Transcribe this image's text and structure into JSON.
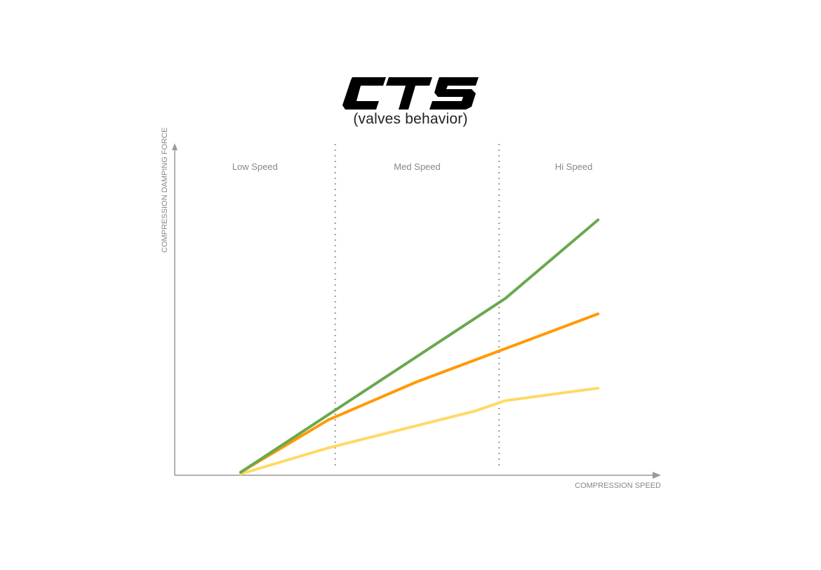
{
  "logo_text": "CTS",
  "subtitle": "(valves behavior)",
  "chart_data": {
    "type": "line",
    "title": "CTS",
    "subtitle": "(valves behavior)",
    "xlabel": "COMPRESSION SPEED",
    "ylabel": "COMPRESSION DAMPING FORCE",
    "xlim": [
      0,
      100
    ],
    "ylim": [
      0,
      100
    ],
    "grid": false,
    "ticks": "none",
    "zones": [
      {
        "label": "Low Speed",
        "from": 0,
        "to": 33.1
      },
      {
        "label": "Med Speed",
        "from": 33.1,
        "to": 66.9
      },
      {
        "label": "Hi Speed",
        "from": 66.9,
        "to": 100
      }
    ],
    "series": [
      {
        "color": "#6aa84f",
        "points": [
          [
            13.6,
            0.9
          ],
          [
            68.2,
            53.6
          ],
          [
            87.3,
            77.4
          ]
        ]
      },
      {
        "color": "#ff9900",
        "points": [
          [
            13.6,
            0.9
          ],
          [
            31.7,
            16.8
          ],
          [
            49.9,
            28.3
          ],
          [
            87.3,
            48.9
          ]
        ]
      },
      {
        "color": "#ffd966",
        "points": [
          [
            13.6,
            0.4
          ],
          [
            31.7,
            8.3
          ],
          [
            61.8,
            19.4
          ],
          [
            68.2,
            22.6
          ],
          [
            87.3,
            26.4
          ]
        ]
      }
    ]
  }
}
